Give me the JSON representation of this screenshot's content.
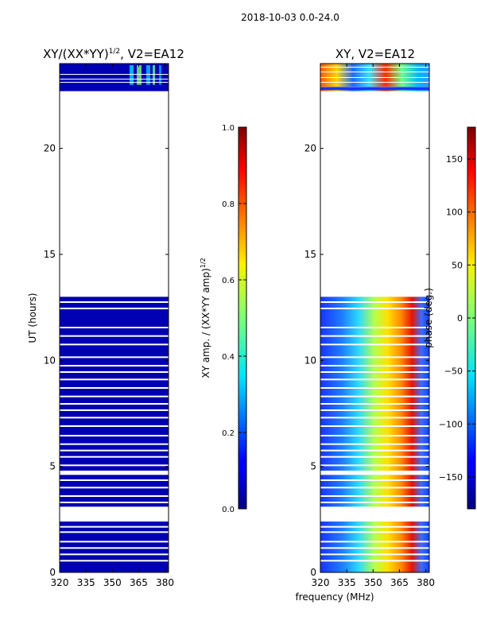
{
  "figure": {
    "suptitle": "2018-10-03 0.0-24.0",
    "xlabel": "frequency (MHz)"
  },
  "chart_data": [
    {
      "type": "heatmap",
      "title": "XY/(XX*YY)",
      "title_exp": "1/2",
      "title_tail": ", V2=EA12",
      "ylabel": "UT (hours)",
      "xlim": [
        320,
        382
      ],
      "ylim": [
        0,
        24
      ],
      "xticks": [
        320,
        335,
        350,
        365,
        380
      ],
      "yticks": [
        0,
        5,
        10,
        15,
        20
      ],
      "colorbar": {
        "label": "XY amp. / (XX*YY amp)",
        "label_exp": "1/2",
        "range": [
          0.0,
          1.0
        ],
        "ticks": [
          "0.0",
          "0.2",
          "0.4",
          "0.6",
          "0.8",
          "1.0"
        ],
        "tick_values": [
          0.0,
          0.2,
          0.4,
          0.6,
          0.8,
          1.0
        ]
      },
      "data_bands_hours": [
        [
          0.0,
          2.4
        ],
        [
          3.1,
          4.6
        ],
        [
          4.8,
          13.0
        ],
        [
          22.7,
          24.0
        ]
      ],
      "typical_value": 0.05
    },
    {
      "type": "heatmap",
      "title": "XY, V2=EA12",
      "ylabel": "",
      "xlim": [
        320,
        382
      ],
      "ylim": [
        0,
        24
      ],
      "xticks": [
        320,
        335,
        350,
        365,
        380
      ],
      "yticks": [
        0,
        5,
        10,
        15,
        20
      ],
      "colorbar": {
        "label": "phase (deg.)",
        "range": [
          -180,
          180
        ],
        "ticks": [
          "−150",
          "−100",
          "−50",
          "0",
          "50",
          "100",
          "150"
        ],
        "tick_values": [
          -150,
          -100,
          -50,
          0,
          50,
          100,
          150
        ]
      },
      "data_bands_hours": [
        [
          0.0,
          2.4
        ],
        [
          3.1,
          4.6
        ],
        [
          4.8,
          13.0
        ],
        [
          22.7,
          24.0
        ]
      ],
      "phase_gradient_deg": {
        "freq_MHz": [
          320,
          382
        ],
        "phase": [
          -150,
          170
        ]
      }
    }
  ]
}
